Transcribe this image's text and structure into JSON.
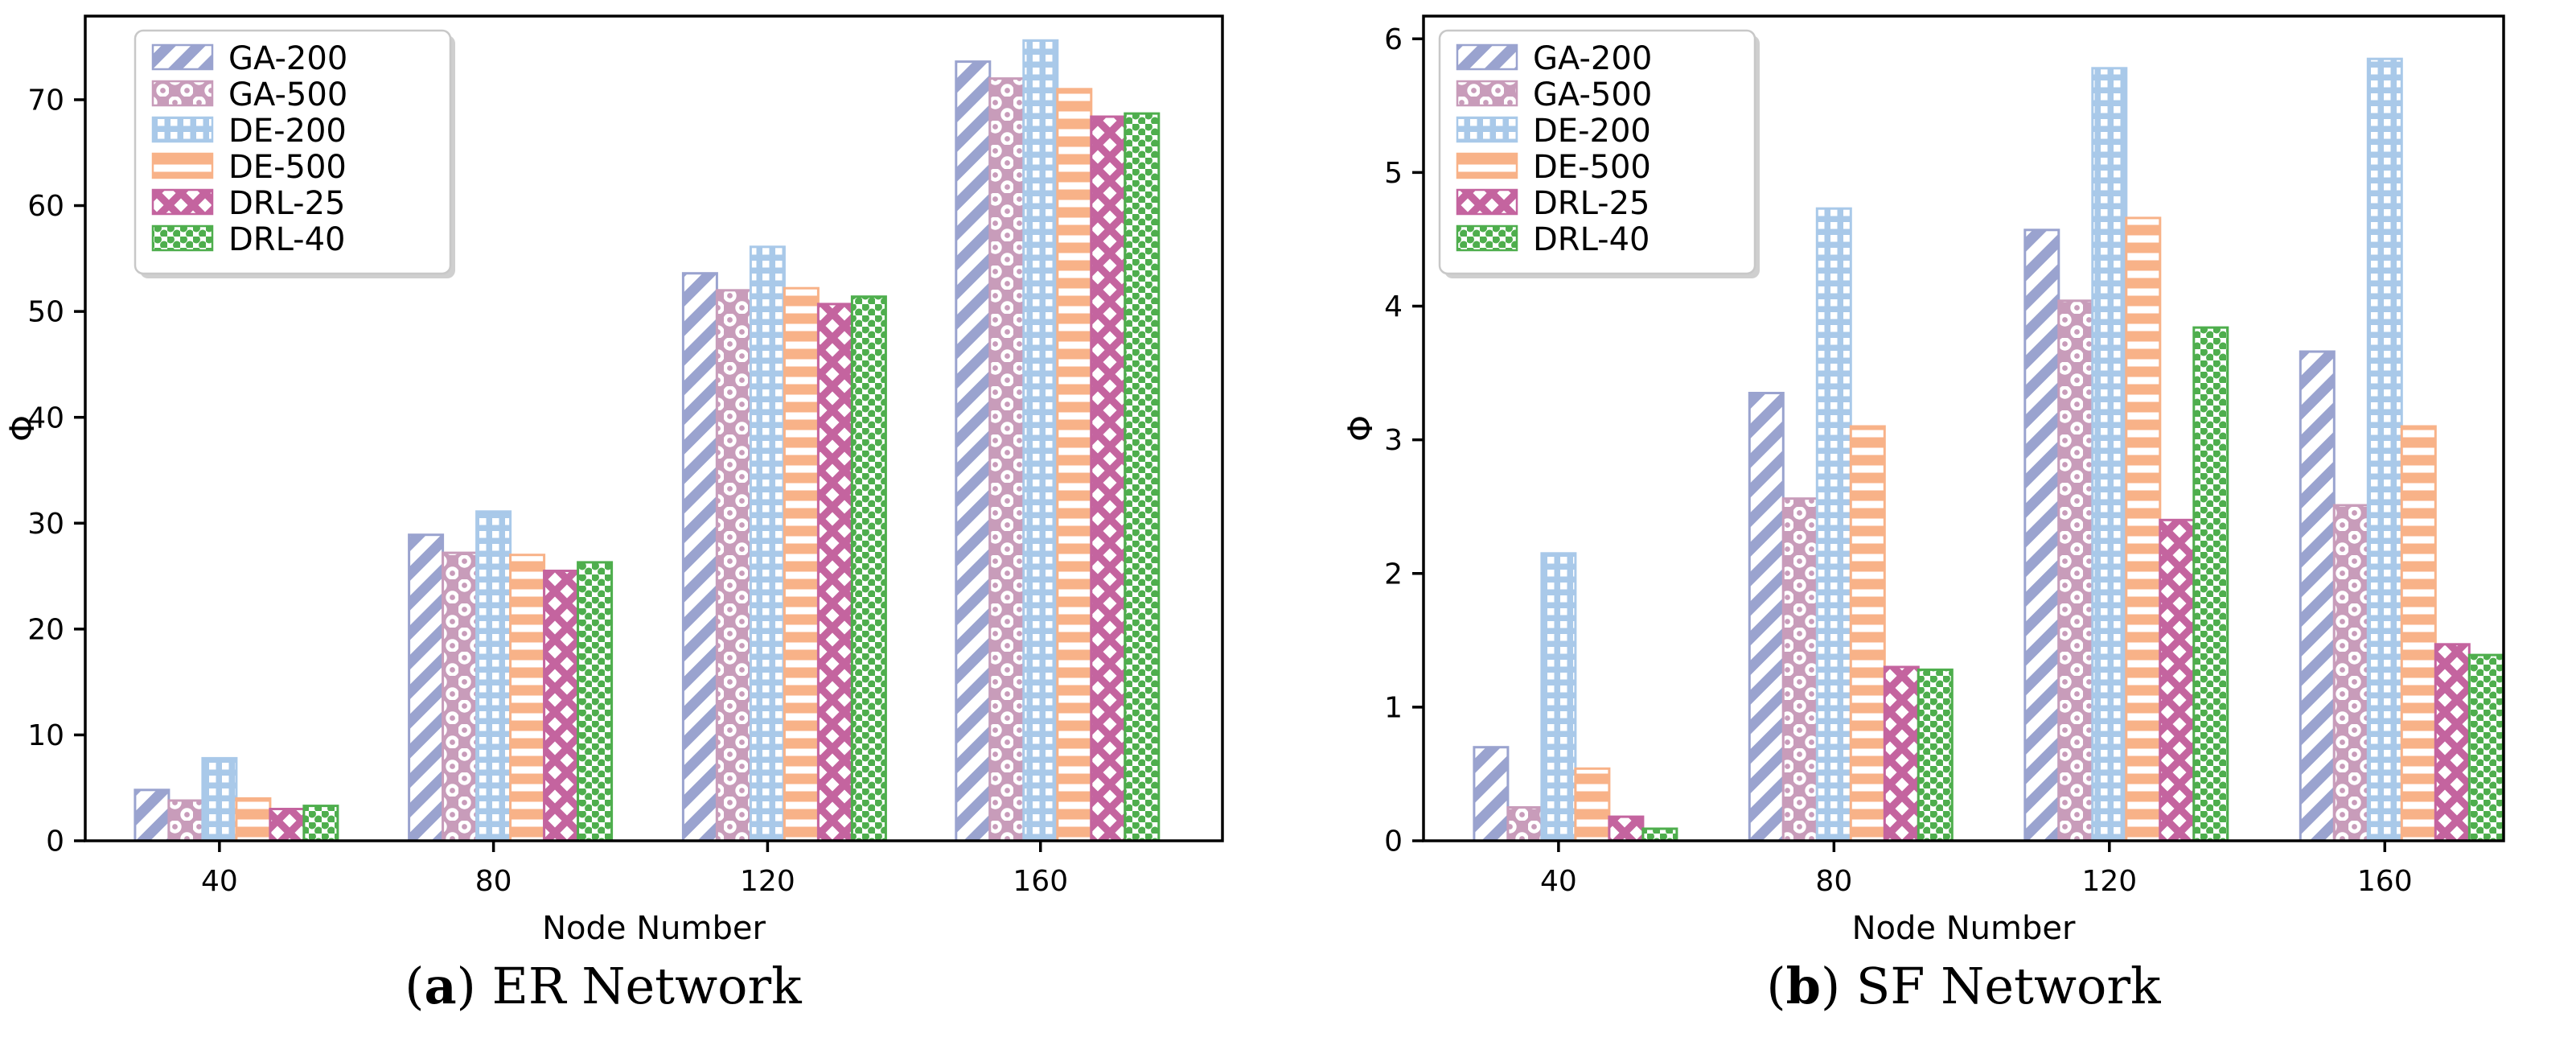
{
  "figure": {
    "captions": {
      "a": {
        "open": "(",
        "letter": "a",
        "close": ")",
        "title": " ER Network"
      },
      "b": {
        "open": "(",
        "letter": "b",
        "close": ")",
        "title": " SF Network"
      }
    }
  },
  "legend": {
    "position": "upper left",
    "entries": [
      {
        "label": "GA-200",
        "color": "#9aa3cf",
        "pattern": "diagonal-stripes-swatch"
      },
      {
        "label": "GA-500",
        "color": "#c89cba",
        "pattern": "ring-circles-swatch"
      },
      {
        "label": "DE-200",
        "color": "#a9c9e9",
        "pattern": "small-squares-swatch"
      },
      {
        "label": "DE-500",
        "color": "#f8b288",
        "pattern": "horizontal-lines-swatch"
      },
      {
        "label": "DRL-25",
        "color": "#c4649f",
        "pattern": "diamonds-swatch"
      },
      {
        "label": "DRL-40",
        "color": "#4eae4d",
        "pattern": "dots-swatch"
      }
    ]
  },
  "chart_data": [
    {
      "id": "er",
      "type": "bar",
      "title": "ER Network",
      "xlabel": "Node Number",
      "ylabel": "Φ",
      "categories": [
        "40",
        "80",
        "120",
        "160"
      ],
      "yticks": [
        0,
        10,
        20,
        30,
        40,
        50,
        60,
        70
      ],
      "ylim": [
        0,
        77.9
      ],
      "grid": false,
      "legend_position": "upper left",
      "series": [
        {
          "name": "GA-200",
          "values": [
            4.8,
            28.9,
            53.6,
            73.6
          ]
        },
        {
          "name": "GA-500",
          "values": [
            3.8,
            27.2,
            52.0,
            72.0
          ]
        },
        {
          "name": "DE-200",
          "values": [
            7.8,
            31.1,
            56.1,
            75.6
          ]
        },
        {
          "name": "DE-500",
          "values": [
            4.0,
            27.0,
            52.2,
            71.0
          ]
        },
        {
          "name": "DRL-25",
          "values": [
            3.0,
            25.5,
            50.7,
            68.4
          ]
        },
        {
          "name": "DRL-40",
          "values": [
            3.3,
            26.3,
            51.4,
            68.7
          ]
        }
      ]
    },
    {
      "id": "sf",
      "type": "bar",
      "title": "SF Network",
      "xlabel": "Node Number",
      "ylabel": "Φ",
      "categories": [
        "40",
        "80",
        "120",
        "160"
      ],
      "yticks": [
        0,
        1,
        2,
        3,
        4,
        5,
        6
      ],
      "ylim": [
        0,
        6.17
      ],
      "grid": false,
      "legend_position": "upper left",
      "series": [
        {
          "name": "GA-200",
          "values": [
            0.7,
            3.35,
            4.57,
            3.66
          ]
        },
        {
          "name": "GA-500",
          "values": [
            0.25,
            2.56,
            4.04,
            2.51
          ]
        },
        {
          "name": "DE-200",
          "values": [
            2.15,
            4.73,
            5.78,
            5.85
          ]
        },
        {
          "name": "DE-500",
          "values": [
            0.54,
            3.1,
            4.66,
            3.1
          ]
        },
        {
          "name": "DRL-25",
          "values": [
            0.18,
            1.3,
            2.4,
            1.47
          ]
        },
        {
          "name": "DRL-40",
          "values": [
            0.09,
            1.28,
            3.84,
            1.39
          ]
        }
      ]
    }
  ]
}
